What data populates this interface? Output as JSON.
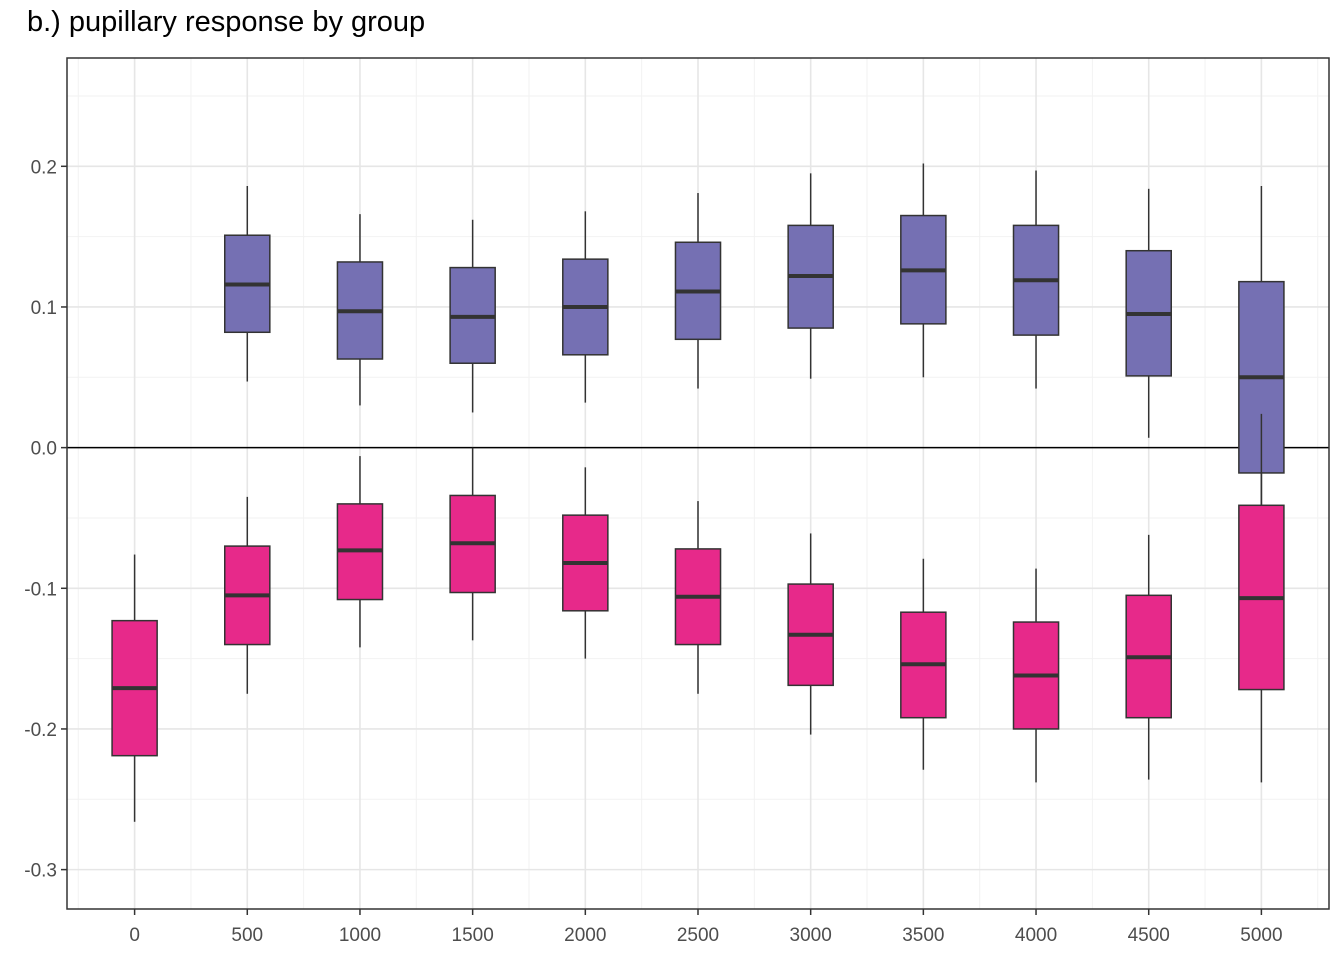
{
  "chart_data": {
    "type": "boxplot",
    "title": "b.) pupillary response by group",
    "xlabel": "",
    "ylabel": "",
    "xlim": [
      -300,
      5300
    ],
    "ylim": [
      -0.328,
      0.277
    ],
    "x_ticks": [
      0,
      500,
      1000,
      1500,
      2000,
      2500,
      3000,
      3500,
      4000,
      4500,
      5000
    ],
    "x_tick_labels": [
      "0",
      "500",
      "1000",
      "1500",
      "2000",
      "2500",
      "3000",
      "3500",
      "4000",
      "4500",
      "5000"
    ],
    "y_ticks": [
      -0.3,
      -0.2,
      -0.1,
      0.0,
      0.1,
      0.2
    ],
    "y_tick_labels": [
      "-0.3",
      "-0.2",
      "-0.1",
      "0.0",
      "0.1",
      "0.2"
    ],
    "reference_line_y": 0,
    "grid": true,
    "legend": "none",
    "box_width": 200,
    "series": [
      {
        "color": "#7570b3",
        "boxes": [
          {
            "x": 500,
            "whisker_low": 0.047,
            "q1": 0.082,
            "median": 0.116,
            "q3": 0.151,
            "whisker_high": 0.186
          },
          {
            "x": 1000,
            "whisker_low": 0.03,
            "q1": 0.063,
            "median": 0.097,
            "q3": 0.132,
            "whisker_high": 0.166
          },
          {
            "x": 1500,
            "whisker_low": 0.025,
            "q1": 0.06,
            "median": 0.093,
            "q3": 0.128,
            "whisker_high": 0.162
          },
          {
            "x": 2000,
            "whisker_low": 0.032,
            "q1": 0.066,
            "median": 0.1,
            "q3": 0.134,
            "whisker_high": 0.168
          },
          {
            "x": 2500,
            "whisker_low": 0.042,
            "q1": 0.077,
            "median": 0.111,
            "q3": 0.146,
            "whisker_high": 0.181
          },
          {
            "x": 3000,
            "whisker_low": 0.049,
            "q1": 0.085,
            "median": 0.122,
            "q3": 0.158,
            "whisker_high": 0.195
          },
          {
            "x": 3500,
            "whisker_low": 0.05,
            "q1": 0.088,
            "median": 0.126,
            "q3": 0.165,
            "whisker_high": 0.202
          },
          {
            "x": 4000,
            "whisker_low": 0.042,
            "q1": 0.08,
            "median": 0.119,
            "q3": 0.158,
            "whisker_high": 0.197
          },
          {
            "x": 4500,
            "whisker_low": 0.007,
            "q1": 0.051,
            "median": 0.095,
            "q3": 0.14,
            "whisker_high": 0.184
          },
          {
            "x": 5000,
            "whisker_low": -0.085,
            "q1": -0.018,
            "median": 0.05,
            "q3": 0.118,
            "whisker_high": 0.186
          }
        ]
      },
      {
        "color": "#e7298a",
        "boxes": [
          {
            "x": 0,
            "whisker_low": -0.266,
            "q1": -0.219,
            "median": -0.171,
            "q3": -0.123,
            "whisker_high": -0.076
          },
          {
            "x": 500,
            "whisker_low": -0.175,
            "q1": -0.14,
            "median": -0.105,
            "q3": -0.07,
            "whisker_high": -0.035
          },
          {
            "x": 1000,
            "whisker_low": -0.142,
            "q1": -0.108,
            "median": -0.073,
            "q3": -0.04,
            "whisker_high": -0.006
          },
          {
            "x": 1500,
            "whisker_low": -0.137,
            "q1": -0.103,
            "median": -0.068,
            "q3": -0.034,
            "whisker_high": 0.0
          },
          {
            "x": 2000,
            "whisker_low": -0.15,
            "q1": -0.116,
            "median": -0.082,
            "q3": -0.048,
            "whisker_high": -0.014
          },
          {
            "x": 2500,
            "whisker_low": -0.175,
            "q1": -0.14,
            "median": -0.106,
            "q3": -0.072,
            "whisker_high": -0.038
          },
          {
            "x": 3000,
            "whisker_low": -0.204,
            "q1": -0.169,
            "median": -0.133,
            "q3": -0.097,
            "whisker_high": -0.061
          },
          {
            "x": 3500,
            "whisker_low": -0.229,
            "q1": -0.192,
            "median": -0.154,
            "q3": -0.117,
            "whisker_high": -0.079
          },
          {
            "x": 4000,
            "whisker_low": -0.238,
            "q1": -0.2,
            "median": -0.162,
            "q3": -0.124,
            "whisker_high": -0.086
          },
          {
            "x": 4500,
            "whisker_low": -0.236,
            "q1": -0.192,
            "median": -0.149,
            "q3": -0.105,
            "whisker_high": -0.062
          },
          {
            "x": 5000,
            "whisker_low": -0.238,
            "q1": -0.172,
            "median": -0.107,
            "q3": -0.041,
            "whisker_high": 0.024
          }
        ]
      }
    ]
  }
}
